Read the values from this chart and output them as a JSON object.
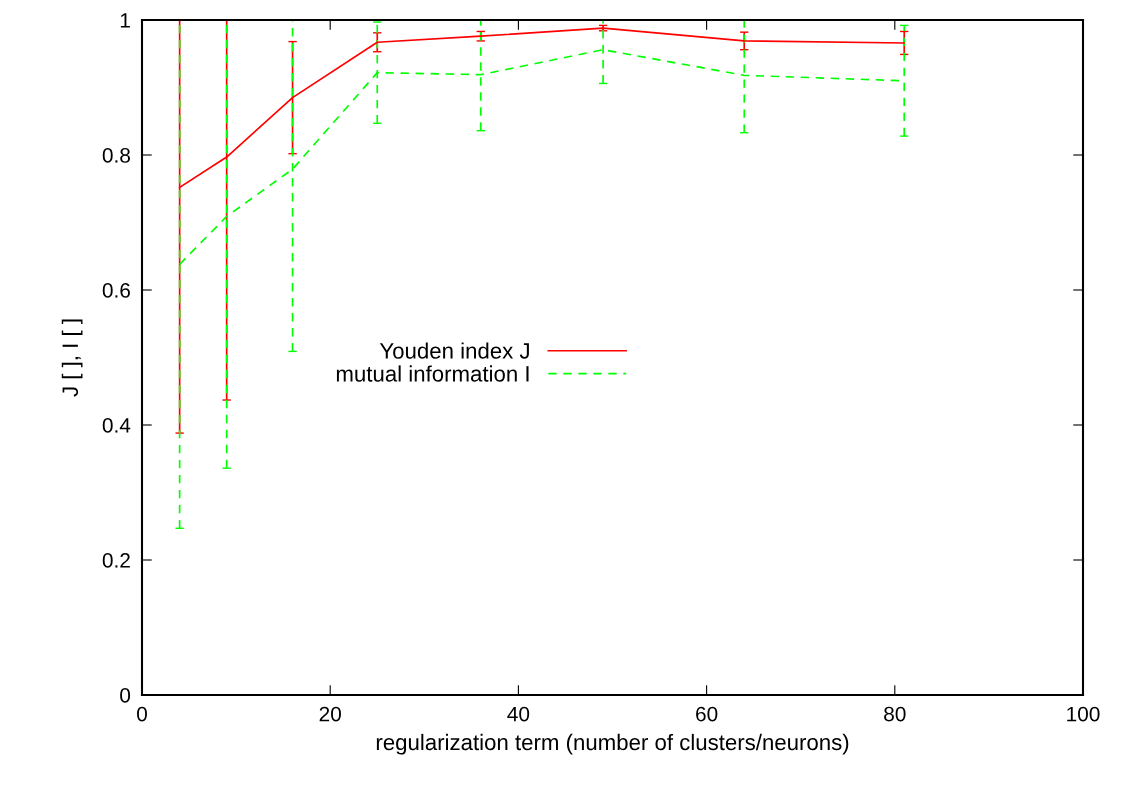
{
  "chart_data": {
    "type": "line",
    "xlabel": "regularization term (number of clusters/neurons)",
    "ylabel": "J [ ], I [ ]",
    "x": [
      4,
      9,
      16,
      25,
      36,
      49,
      64,
      81
    ],
    "series": [
      {
        "name": "Youden index J",
        "color": "#ff0000",
        "line_style": "solid",
        "values": [
          0.752,
          0.797,
          0.885,
          0.967,
          0.976,
          0.988,
          0.969,
          0.966
        ],
        "errors": [
          [
            0.388,
            1
          ],
          [
            0.437,
            1
          ],
          0.083,
          0.014,
          0.007,
          0.004,
          0.013,
          0.017
        ]
      },
      {
        "name": "mutual information I",
        "color": "#00ff00",
        "line_style": "dashed",
        "values": [
          0.638,
          0.709,
          0.779,
          0.922,
          0.919,
          0.956,
          0.918,
          0.91
        ],
        "errors": [
          [
            0.247,
            1
          ],
          [
            0.336,
            1
          ],
          [
            0.509,
            1
          ],
          0.075,
          0.083,
          0.05,
          0.085,
          0.082
        ]
      }
    ],
    "xlim": [
      0,
      100
    ],
    "xticks": [
      0,
      20,
      40,
      60,
      80,
      100
    ],
    "ylim": [
      0,
      1
    ],
    "yticks": [
      0,
      0.2,
      0.4,
      0.6,
      0.8,
      1
    ],
    "grid": false,
    "legend": "center",
    "marker": "none"
  }
}
